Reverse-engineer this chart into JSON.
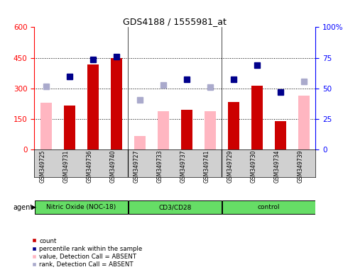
{
  "title": "GDS4188 / 1555981_at",
  "samples": [
    "GSM349725",
    "GSM349731",
    "GSM349736",
    "GSM349740",
    "GSM349727",
    "GSM349733",
    "GSM349737",
    "GSM349741",
    "GSM349729",
    "GSM349730",
    "GSM349734",
    "GSM349739"
  ],
  "group_boundaries": [
    0,
    4,
    8,
    12
  ],
  "group_labels": [
    "Nitric Oxide (NOC-18)",
    "CD3/CD28",
    "control"
  ],
  "count_values": [
    null,
    215,
    418,
    450,
    null,
    null,
    195,
    null,
    235,
    312,
    138,
    null
  ],
  "count_color": "#cc0000",
  "value_absent": [
    230,
    null,
    null,
    null,
    68,
    188,
    null,
    188,
    null,
    null,
    null,
    265
  ],
  "value_absent_color": "#ffb6c1",
  "rank_present_left": [
    null,
    360,
    440,
    455,
    null,
    null,
    345,
    null,
    345,
    415,
    283,
    null
  ],
  "rank_present_color": "#00008b",
  "rank_absent_left": [
    308,
    null,
    null,
    null,
    243,
    318,
    null,
    305,
    null,
    null,
    null,
    333
  ],
  "rank_absent_color": "#aaaacc",
  "ylim_left": [
    0,
    600
  ],
  "left_ticks": [
    0,
    150,
    300,
    450,
    600
  ],
  "right_ticks": [
    0,
    25,
    50,
    75,
    100
  ],
  "right_tick_labels": [
    "0",
    "25",
    "50",
    "75",
    "100%"
  ],
  "grid_lines": [
    150,
    300,
    450
  ],
  "bar_width": 0.5,
  "marker_size": 6,
  "group_color": "#66dd66",
  "gray_bg": "#d0d0d0"
}
